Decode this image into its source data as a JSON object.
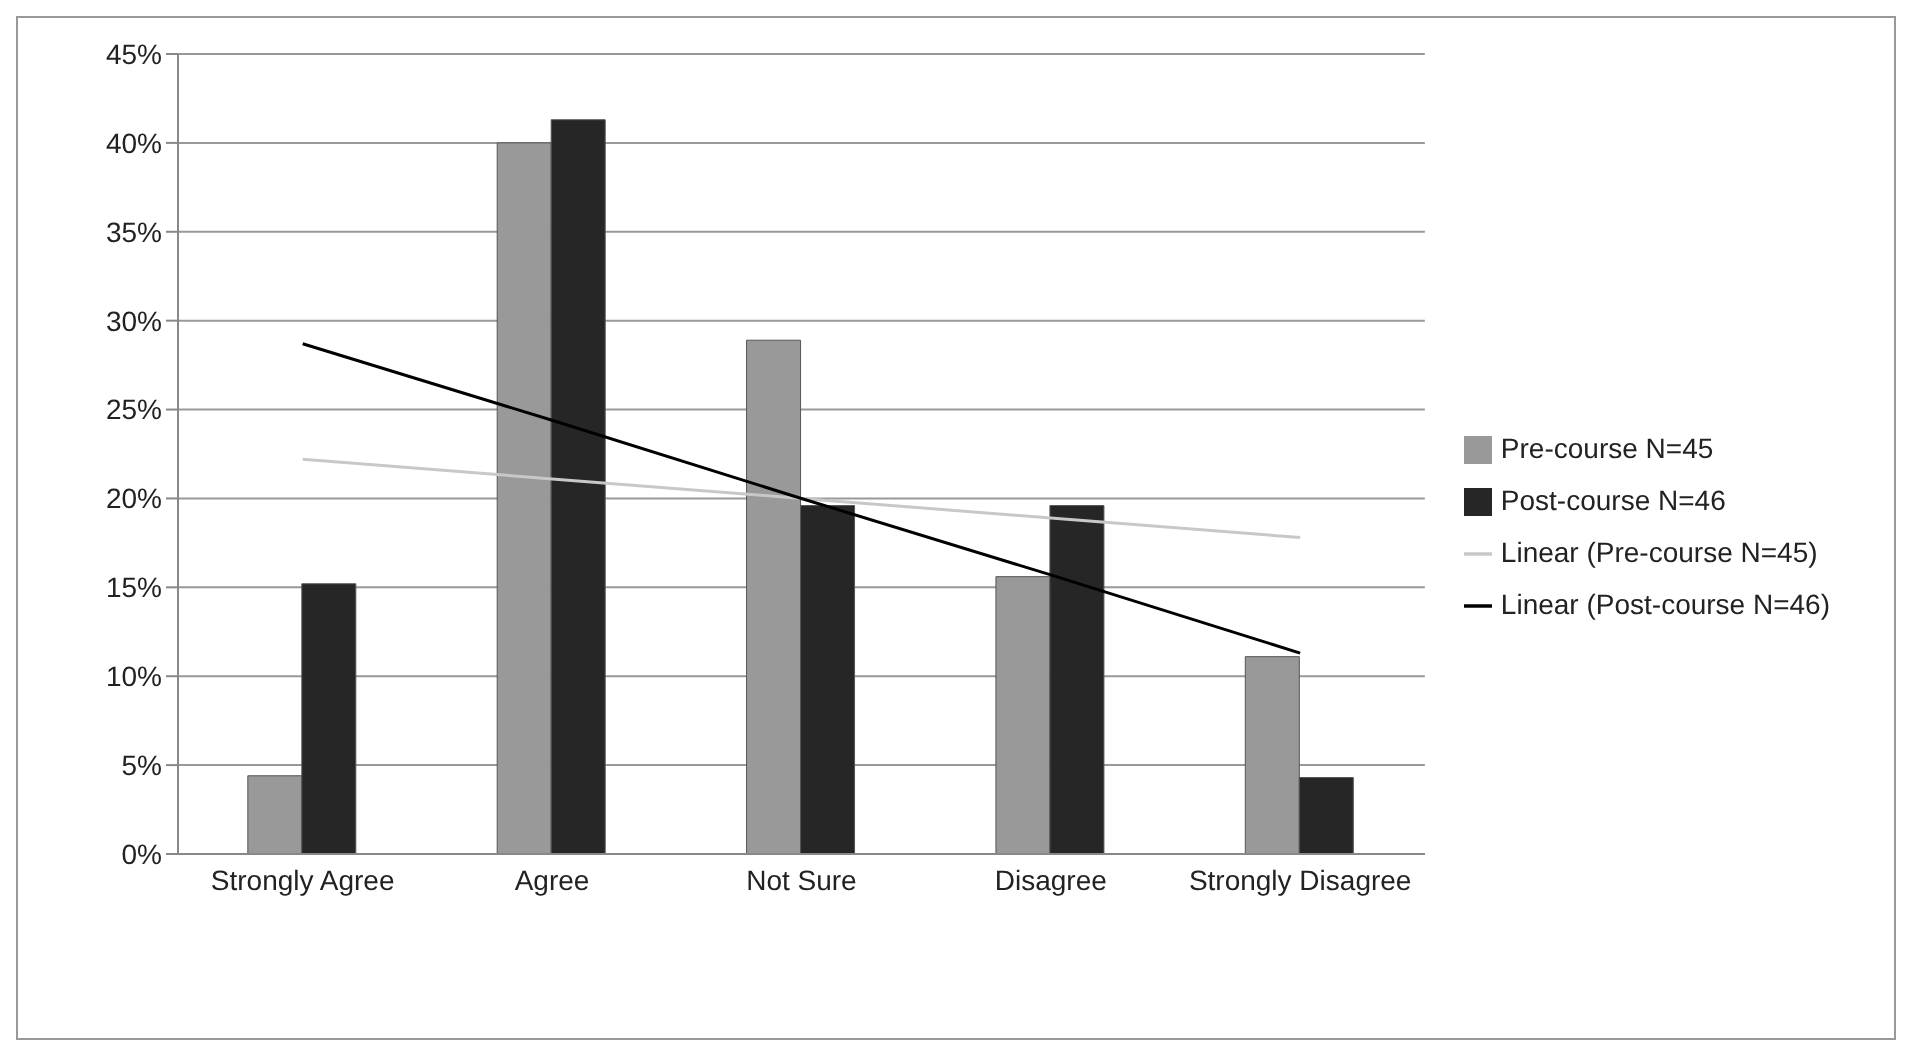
{
  "chart_data": {
    "type": "bar",
    "categories": [
      "Strongly Agree",
      "Agree",
      "Not Sure",
      "Disagree",
      "Strongly Disagree"
    ],
    "series": [
      {
        "name": "Pre-course N=45",
        "color": "#999999",
        "values": [
          4.4,
          40,
          28.9,
          15.6,
          11.1
        ]
      },
      {
        "name": "Post-course N=46",
        "color": "#262626",
        "values": [
          15.2,
          41.3,
          19.6,
          19.6,
          4.3
        ]
      },
      {
        "type": "line",
        "name": "Linear (Pre-course N=45)",
        "color": "#c8c8c8",
        "values": [
          22.2,
          21.1,
          20,
          18.9,
          17.8
        ]
      },
      {
        "type": "line",
        "name": "Linear (Post-course N=46)",
        "color": "#000000",
        "values": [
          28.7,
          24.4,
          20,
          15.7,
          11.3
        ]
      }
    ],
    "ylim": [
      0,
      45
    ],
    "yticks": [
      {
        "value": 0,
        "label": "0%"
      },
      {
        "value": 5,
        "label": "5%"
      },
      {
        "value": 10,
        "label": "10%"
      },
      {
        "value": 15,
        "label": "15%"
      },
      {
        "value": 20,
        "label": "20%"
      },
      {
        "value": 25,
        "label": "25%"
      },
      {
        "value": 30,
        "label": "30%"
      },
      {
        "value": 35,
        "label": "35%"
      },
      {
        "value": 40,
        "label": "40%"
      },
      {
        "value": 45,
        "label": "45%"
      }
    ],
    "grid": "y",
    "legend": "right",
    "marker": "none"
  }
}
